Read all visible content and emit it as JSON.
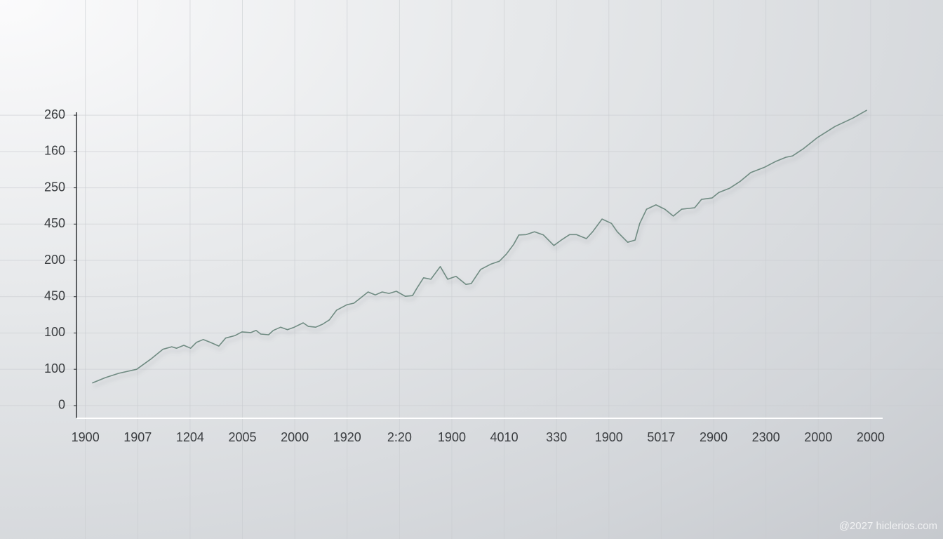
{
  "chart_data": {
    "type": "line",
    "watermark": "@2027 hiclerios.com",
    "color": "#6f8b82",
    "xlim": [
      -0.17,
      15.23
    ],
    "ylim": [
      -0.35,
      8.08
    ],
    "xticks": [
      {
        "value": 0,
        "label": "1900"
      },
      {
        "value": 1,
        "label": "1907"
      },
      {
        "value": 2,
        "label": "1204"
      },
      {
        "value": 3,
        "label": "2005"
      },
      {
        "value": 4,
        "label": "2000"
      },
      {
        "value": 5,
        "label": "1920"
      },
      {
        "value": 6,
        "label": "2:20"
      },
      {
        "value": 7,
        "label": "1900"
      },
      {
        "value": 8,
        "label": "4010"
      },
      {
        "value": 9,
        "label": "330"
      },
      {
        "value": 10,
        "label": "1900"
      },
      {
        "value": 11,
        "label": "5017"
      },
      {
        "value": 12,
        "label": "2900"
      },
      {
        "value": 13,
        "label": "2300"
      },
      {
        "value": 14,
        "label": "2000"
      },
      {
        "value": 15,
        "label": "2000"
      }
    ],
    "yticks": [
      {
        "value": 0,
        "label": "0"
      },
      {
        "value": 1,
        "label": "100"
      },
      {
        "value": 2,
        "label": "100"
      },
      {
        "value": 3,
        "label": "450"
      },
      {
        "value": 4,
        "label": "200"
      },
      {
        "value": 5,
        "label": "450"
      },
      {
        "value": 6,
        "label": "250"
      },
      {
        "value": 7,
        "label": "160"
      },
      {
        "value": 8,
        "label": "260"
      }
    ],
    "grid": true,
    "x": [
      0.13,
      0.38,
      0.64,
      0.98,
      1.25,
      1.48,
      1.65,
      1.74,
      1.88,
      2.01,
      2.12,
      2.25,
      2.39,
      2.55,
      2.68,
      2.86,
      2.99,
      3.16,
      3.26,
      3.35,
      3.5,
      3.59,
      3.73,
      3.86,
      3.99,
      4.16,
      4.26,
      4.4,
      4.53,
      4.66,
      4.8,
      5.0,
      5.13,
      5.27,
      5.4,
      5.54,
      5.67,
      5.8,
      5.94,
      6.11,
      6.25,
      6.34,
      6.46,
      6.6,
      6.78,
      6.92,
      7.08,
      7.27,
      7.37,
      7.55,
      7.75,
      7.91,
      8.04,
      8.18,
      8.28,
      8.42,
      8.58,
      8.75,
      8.95,
      9.09,
      9.25,
      9.38,
      9.57,
      9.69,
      9.87,
      10.05,
      10.16,
      10.36,
      10.5,
      10.59,
      10.72,
      10.9,
      11.07,
      11.23,
      11.39,
      11.64,
      11.77,
      11.97,
      12.1,
      12.31,
      12.51,
      12.71,
      12.98,
      13.18,
      13.38,
      13.51,
      13.71,
      13.98,
      14.32,
      14.66,
      14.93
    ],
    "values": [
      0.62,
      0.77,
      0.89,
      1.0,
      1.28,
      1.55,
      1.62,
      1.58,
      1.66,
      1.58,
      1.74,
      1.82,
      1.74,
      1.64,
      1.86,
      1.93,
      2.03,
      2.01,
      2.07,
      1.97,
      1.95,
      2.07,
      2.16,
      2.09,
      2.16,
      2.28,
      2.18,
      2.16,
      2.24,
      2.36,
      2.63,
      2.78,
      2.82,
      2.98,
      3.13,
      3.05,
      3.13,
      3.09,
      3.15,
      3.01,
      3.03,
      3.25,
      3.52,
      3.48,
      3.83,
      3.48,
      3.56,
      3.34,
      3.36,
      3.75,
      3.9,
      3.98,
      4.17,
      4.44,
      4.7,
      4.71,
      4.79,
      4.7,
      4.41,
      4.56,
      4.71,
      4.71,
      4.6,
      4.79,
      5.14,
      5.02,
      4.79,
      4.5,
      4.56,
      5.02,
      5.41,
      5.53,
      5.41,
      5.22,
      5.41,
      5.45,
      5.68,
      5.72,
      5.87,
      5.99,
      6.18,
      6.42,
      6.57,
      6.72,
      6.84,
      6.88,
      7.07,
      7.38,
      7.69,
      7.92,
      8.14
    ]
  }
}
